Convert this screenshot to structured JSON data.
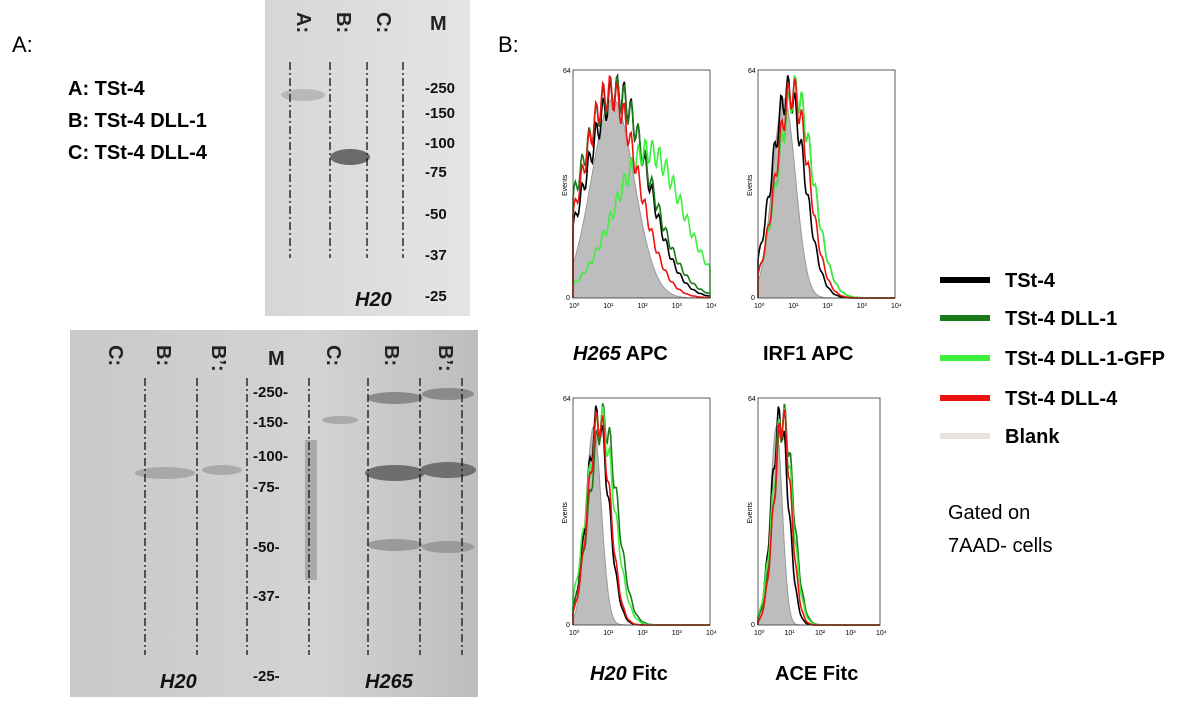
{
  "panel_a": {
    "label": "A:",
    "key": [
      "A: TSt-4",
      "B: TSt-4 DLL-1",
      "C: TSt-4 DLL-4"
    ],
    "top_blot": {
      "lanes": [
        "A:",
        "B:",
        "C:"
      ],
      "marker_lane": "M",
      "markers": [
        "-250",
        "-150",
        "-100",
        "-75",
        "-50",
        "-37",
        "-25"
      ],
      "antibody": "H20"
    },
    "bottom_blot": {
      "lanes": [
        "C:",
        "B:",
        "B’:",
        "M",
        "C:",
        "B:",
        "B’:"
      ],
      "markers": [
        "-250-",
        "-150-",
        "-100-",
        "-75-",
        "-50-",
        "-37-",
        "-25-"
      ],
      "antibodies": [
        "H20",
        "H265"
      ]
    }
  },
  "panel_b": {
    "label": "B:",
    "histograms": [
      {
        "italic": "H265",
        "rest": "APC"
      },
      {
        "italic": "",
        "rest": "IRF1 APC"
      },
      {
        "italic": "H20",
        "rest": "Fitc"
      },
      {
        "italic": "",
        "rest": "ACE Fitc"
      }
    ],
    "y_axis": {
      "label": "Events",
      "max": "64",
      "min": "0"
    },
    "x_ticks": [
      "10⁰",
      "10¹",
      "10²",
      "10³",
      "10⁴"
    ],
    "legend": [
      {
        "name": "TSt-4",
        "color": "#000000"
      },
      {
        "name": "TSt-4 DLL-1",
        "color": "#1a7a1a"
      },
      {
        "name": "TSt-4 DLL-1-GFP",
        "color": "#3cf03c"
      },
      {
        "name": "TSt-4 DLL-4",
        "color": "#ee1111"
      },
      {
        "name": "Blank",
        "color": "#e6e4da"
      }
    ],
    "note": [
      "Gated on",
      "7AAD- cells"
    ]
  }
}
